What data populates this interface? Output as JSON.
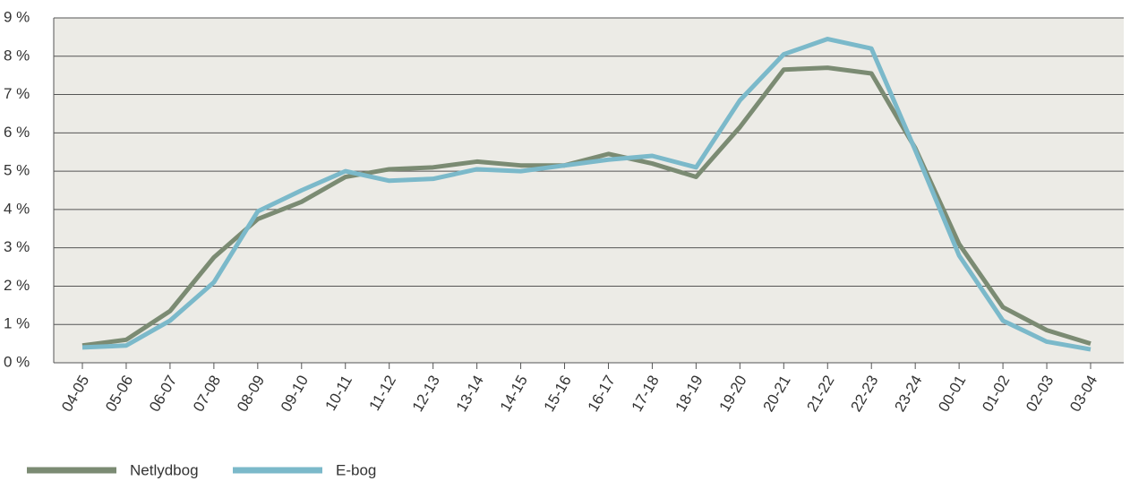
{
  "chart_data": {
    "type": "line",
    "categories": [
      "04-05",
      "05-06",
      "06-07",
      "07-08",
      "08-09",
      "09-10",
      "10-11",
      "11-12",
      "12-13",
      "13-14",
      "14-15",
      "15-16",
      "16-17",
      "17-18",
      "18-19",
      "19-20",
      "20-21",
      "21-22",
      "22-23",
      "23-24",
      "00-01",
      "01-02",
      "02-03",
      "03-04"
    ],
    "series": [
      {
        "name": "Netlydbog",
        "color": "#7b8b73",
        "values": [
          0.45,
          0.6,
          1.35,
          2.75,
          3.75,
          4.2,
          4.85,
          5.05,
          5.1,
          5.25,
          5.15,
          5.15,
          5.45,
          5.2,
          4.85,
          6.15,
          7.65,
          7.7,
          7.55,
          5.6,
          3.1,
          1.45,
          0.85,
          0.5
        ]
      },
      {
        "name": "E-bog",
        "color": "#7bb9ca",
        "values": [
          0.4,
          0.45,
          1.1,
          2.1,
          3.95,
          4.5,
          5.0,
          4.75,
          4.8,
          5.05,
          5.0,
          5.15,
          5.3,
          5.4,
          5.1,
          6.85,
          8.05,
          8.45,
          8.2,
          5.55,
          2.8,
          1.1,
          0.55,
          0.35
        ]
      }
    ],
    "ylim": [
      0,
      9
    ],
    "yticks": [
      {
        "value": 0,
        "label": "0 %"
      },
      {
        "value": 1,
        "label": "1 %"
      },
      {
        "value": 2,
        "label": "2 %"
      },
      {
        "value": 3,
        "label": "3 %"
      },
      {
        "value": 4,
        "label": "4 %"
      },
      {
        "value": 5,
        "label": "5 %"
      },
      {
        "value": 6,
        "label": "6 %"
      },
      {
        "value": 7,
        "label": "7 %"
      },
      {
        "value": 8,
        "label": "8 %"
      },
      {
        "value": 9,
        "label": "9 %"
      }
    ],
    "grid": true
  }
}
